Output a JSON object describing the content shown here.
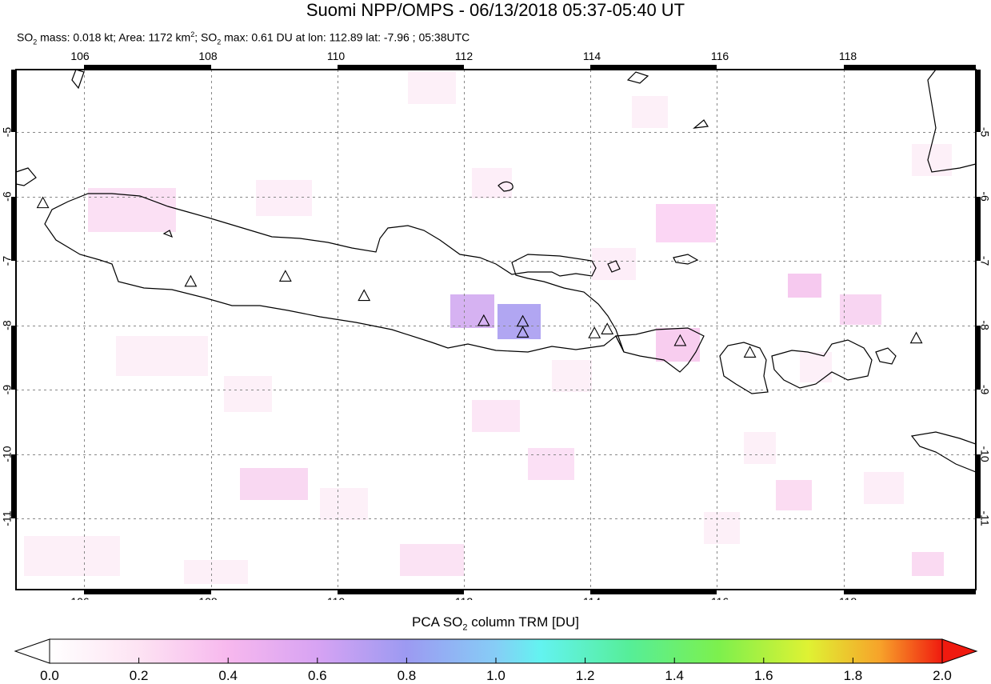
{
  "title": "Suomi NPP/OMPS - 06/13/2018 05:37-05:40 UT",
  "subtitle": {
    "so2_prefix": "SO",
    "mass_text": " mass: 0.018 kt; Area: 1172 km",
    "area_sup": "2",
    "so2_max_prefix": "; SO",
    "max_text": " max: 0.61 DU at lon: 112.89 lat: -7.96 ; 05:38UTC",
    "sub2": "2"
  },
  "map": {
    "lon_ticks": [
      "106",
      "108",
      "110",
      "112",
      "114",
      "116",
      "118"
    ],
    "lat_ticks": [
      "-5",
      "-6",
      "-7",
      "-8",
      "-9",
      "-10",
      "-11"
    ],
    "volcano_markers": [
      {
        "lon": 105.42,
        "lat": -6.1
      },
      {
        "lon": 107.73,
        "lat": -7.32
      },
      {
        "lon": 109.21,
        "lat": -7.24
      },
      {
        "lon": 110.44,
        "lat": -7.54
      },
      {
        "lon": 112.31,
        "lat": -7.93
      },
      {
        "lon": 112.92,
        "lat": -7.94
      },
      {
        "lon": 112.92,
        "lat": -8.11
      },
      {
        "lon": 114.04,
        "lat": -8.12
      },
      {
        "lon": 114.24,
        "lat": -8.06
      },
      {
        "lon": 115.38,
        "lat": -8.24
      },
      {
        "lon": 116.47,
        "lat": -8.42
      },
      {
        "lon": 119.07,
        "lat": -8.2
      }
    ]
  },
  "colorbar": {
    "title_prefix": "PCA SO",
    "title_sub": "2",
    "title_suffix": " column TRM [DU]",
    "labels": [
      "0.0",
      "0.2",
      "0.4",
      "0.6",
      "0.8",
      "1.0",
      "1.2",
      "1.4",
      "1.6",
      "1.8",
      "2.0"
    ],
    "colors": [
      "#ffffff",
      "#fde3f3",
      "#f7b8ee",
      "#d7a3f3",
      "#9c9af2",
      "#86cdf6",
      "#63f3f0",
      "#56ee98",
      "#7df04d",
      "#dff233",
      "#f7a32a",
      "#f01a0f"
    ]
  }
}
